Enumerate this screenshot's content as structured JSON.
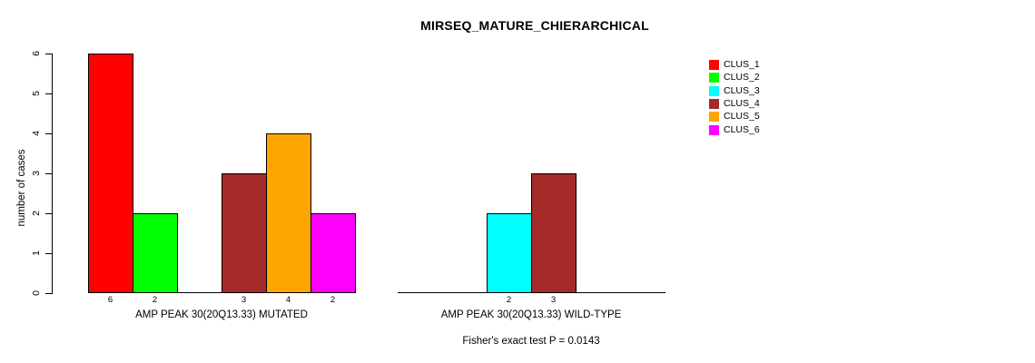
{
  "title": "MIRSEQ_MATURE_CHIERARCHICAL",
  "chart_data": {
    "type": "bar",
    "title": "MIRSEQ_MATURE_CHIERARCHICAL",
    "xlabel": "",
    "ylabel": "number of cases",
    "ylim": [
      0,
      6
    ],
    "yticks": [
      0,
      1,
      2,
      3,
      4,
      5,
      6
    ],
    "grid": false,
    "legend_position": "top-right",
    "bar_border_color": "#000000",
    "categories": [
      "AMP PEAK 30(20Q13.33) MUTATED",
      "AMP PEAK 30(20Q13.33) WILD-TYPE"
    ],
    "series": [
      {
        "name": "CLUS_1",
        "color": "#FF0000",
        "values": [
          6,
          0
        ]
      },
      {
        "name": "CLUS_2",
        "color": "#00FF00",
        "values": [
          2,
          0
        ]
      },
      {
        "name": "CLUS_3",
        "color": "#00FFFF",
        "values": [
          0,
          2
        ]
      },
      {
        "name": "CLUS_4",
        "color": "#A52A2A",
        "values": [
          3,
          3
        ]
      },
      {
        "name": "CLUS_5",
        "color": "#FFA500",
        "values": [
          4,
          0
        ]
      },
      {
        "name": "CLUS_6",
        "color": "#FF00FF",
        "values": [
          2,
          0
        ]
      }
    ],
    "bar_value_labels_note": "value printed under axis for each nonzero bar",
    "annotation": "Fisher's exact test P = 0.0143"
  }
}
